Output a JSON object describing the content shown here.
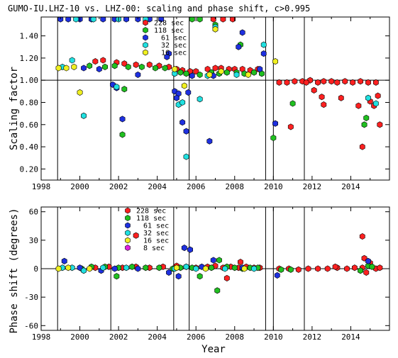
{
  "chart_data": [
    {
      "type": "scatter",
      "title": "GUMO-IU.LHZ-10 vs. LHZ-00: scaling and phase shift, c>0.995",
      "xlabel": "",
      "ylabel": "Scaling factor",
      "xlim": [
        1998,
        2016
      ],
      "ylim": [
        0.1,
        1.57
      ],
      "xticks": [
        1998,
        2000,
        2002,
        2004,
        2006,
        2008,
        2010,
        2012,
        2014
      ],
      "yticks": [
        0.2,
        0.4,
        0.6,
        0.8,
        1.0,
        1.2,
        1.4
      ],
      "ytick_labels": [
        "0.20",
        "0.40",
        "0.60",
        "0.80",
        "1.00",
        "1.20",
        "1.40"
      ],
      "hline": 1.0,
      "vlines": [
        1998.85,
        2001.6,
        2004.85,
        2005.65,
        2009.6,
        2010.0,
        2011.6
      ],
      "legend_position": "top-center",
      "series": [
        {
          "name": "228 sec",
          "color": "#ff2020",
          "points": [
            [
              2000.8,
              1.17
            ],
            [
              2001.2,
              1.18
            ],
            [
              2001.9,
              1.16
            ],
            [
              2002.3,
              1.15
            ],
            [
              2002.9,
              1.14
            ],
            [
              2003.6,
              1.14
            ],
            [
              2004.1,
              1.13
            ],
            [
              2004.6,
              1.12
            ],
            [
              2005.0,
              1.1
            ],
            [
              2005.3,
              1.09
            ],
            [
              2005.7,
              1.08
            ],
            [
              2006.0,
              1.08
            ],
            [
              2006.6,
              1.1
            ],
            [
              2007.0,
              1.11
            ],
            [
              2007.3,
              1.11
            ],
            [
              2007.7,
              1.1
            ],
            [
              2008.0,
              1.1
            ],
            [
              2008.4,
              1.1
            ],
            [
              2008.8,
              1.09
            ],
            [
              2009.2,
              1.1
            ],
            [
              2006.9,
              1.55
            ],
            [
              2007.4,
              1.55
            ],
            [
              2007.9,
              1.55
            ],
            [
              2010.3,
              0.98
            ],
            [
              2010.7,
              0.98
            ],
            [
              2011.1,
              0.99
            ],
            [
              2011.5,
              0.99
            ],
            [
              2011.9,
              1.0
            ],
            [
              2012.3,
              0.98
            ],
            [
              2012.6,
              0.99
            ],
            [
              2013.0,
              0.99
            ],
            [
              2013.3,
              0.98
            ],
            [
              2013.7,
              0.99
            ],
            [
              2014.1,
              0.98
            ],
            [
              2014.5,
              0.99
            ],
            [
              2014.9,
              0.98
            ],
            [
              2015.3,
              0.98
            ],
            [
              2012.1,
              0.91
            ],
            [
              2012.5,
              0.85
            ],
            [
              2012.6,
              0.78
            ],
            [
              2013.5,
              0.84
            ],
            [
              2014.4,
              0.77
            ],
            [
              2014.6,
              0.4
            ],
            [
              2015.0,
              0.81
            ],
            [
              2015.2,
              0.77
            ],
            [
              2015.4,
              0.86
            ],
            [
              2015.5,
              0.6
            ],
            [
              2010.9,
              0.58
            ],
            [
              2011.7,
              0.98
            ]
          ]
        },
        {
          "name": "118 sec",
          "color": "#20c020",
          "points": [
            [
              2000.5,
              1.13
            ],
            [
              2001.3,
              1.12
            ],
            [
              2001.8,
              1.13
            ],
            [
              2002.5,
              1.12
            ],
            [
              2003.2,
              1.12
            ],
            [
              2003.9,
              1.11
            ],
            [
              2004.4,
              1.11
            ],
            [
              2005.2,
              1.07
            ],
            [
              2005.5,
              1.06
            ],
            [
              2006.2,
              1.05
            ],
            [
              2006.8,
              1.07
            ],
            [
              2007.2,
              1.06
            ],
            [
              2007.6,
              1.07
            ],
            [
              2008.1,
              1.07
            ],
            [
              2008.5,
              1.06
            ],
            [
              2009.0,
              1.07
            ],
            [
              2009.4,
              1.06
            ],
            [
              2002.2,
              0.51
            ],
            [
              2002.3,
              0.92
            ],
            [
              2008.3,
              1.32
            ],
            [
              2007.0,
              1.5
            ],
            [
              2010.0,
              0.48
            ],
            [
              2011.0,
              0.79
            ],
            [
              2014.7,
              0.6
            ],
            [
              2014.8,
              0.66
            ],
            [
              2005.8,
              1.55
            ],
            [
              2006.2,
              1.55
            ]
          ]
        },
        {
          "name": "61 sec",
          "color": "#1e30e0",
          "points": [
            [
              1999.0,
              1.55
            ],
            [
              1999.4,
              1.55
            ],
            [
              2000.0,
              1.55
            ],
            [
              2000.6,
              1.55
            ],
            [
              2001.2,
              1.55
            ],
            [
              2001.8,
              1.55
            ],
            [
              2002.4,
              1.55
            ],
            [
              2003.0,
              1.55
            ],
            [
              2003.6,
              1.55
            ],
            [
              2004.2,
              1.55
            ],
            [
              2000.2,
              1.11
            ],
            [
              2001.0,
              1.1
            ],
            [
              2001.7,
              0.96
            ],
            [
              2001.9,
              0.93
            ],
            [
              2002.2,
              0.65
            ],
            [
              2003.0,
              1.05
            ],
            [
              2004.6,
              1.24
            ],
            [
              2004.5,
              1.21
            ],
            [
              2004.9,
              0.9
            ],
            [
              2005.1,
              0.88
            ],
            [
              2005.3,
              0.62
            ],
            [
              2005.5,
              0.54
            ],
            [
              2005.6,
              0.89
            ],
            [
              2005.8,
              1.04
            ],
            [
              2006.7,
              0.45
            ],
            [
              2008.4,
              1.43
            ],
            [
              2008.2,
              1.3
            ],
            [
              2009.5,
              1.24
            ],
            [
              2009.3,
              1.1
            ],
            [
              2010.1,
              0.61
            ],
            [
              2005.0,
              0.84
            ],
            [
              2006.9,
              1.04
            ]
          ]
        },
        {
          "name": "32 sec",
          "color": "#20e0e0",
          "points": [
            [
              1999.1,
              1.12
            ],
            [
              1999.6,
              1.18
            ],
            [
              2000.2,
              0.68
            ],
            [
              2001.9,
              0.94
            ],
            [
              2004.9,
              1.06
            ],
            [
              2005.1,
              0.78
            ],
            [
              2005.3,
              0.8
            ],
            [
              2005.5,
              0.31
            ],
            [
              2006.2,
              0.83
            ],
            [
              2006.6,
              1.04
            ],
            [
              2007.0,
              1.48
            ],
            [
              2008.1,
              1.05
            ],
            [
              2009.5,
              1.32
            ],
            [
              2014.9,
              0.84
            ],
            [
              2015.3,
              0.79
            ],
            [
              1999.8,
              1.55
            ],
            [
              2000.7,
              1.55
            ],
            [
              2002.0,
              1.55
            ],
            [
              2003.4,
              1.55
            ]
          ]
        },
        {
          "name": "16 sec",
          "color": "#f0f020",
          "points": [
            [
              1998.9,
              1.11
            ],
            [
              1999.3,
              1.11
            ],
            [
              1999.7,
              1.12
            ],
            [
              2000.0,
              0.89
            ],
            [
              2005.4,
              0.95
            ],
            [
              2006.7,
              1.05
            ],
            [
              2007.0,
              1.46
            ],
            [
              2007.3,
              1.08
            ],
            [
              2008.7,
              1.05
            ],
            [
              2010.1,
              1.17
            ],
            [
              2004.9,
              1.1
            ]
          ]
        }
      ]
    },
    {
      "type": "scatter",
      "title": "",
      "xlabel": "Year",
      "ylabel": "Phase shift (degrees)",
      "xlim": [
        1998,
        2016
      ],
      "ylim": [
        -65,
        65
      ],
      "xticks": [
        1998,
        2000,
        2002,
        2004,
        2006,
        2008,
        2010,
        2012,
        2014
      ],
      "yticks": [
        -60,
        -30,
        0,
        30,
        60
      ],
      "ytick_labels": [
        "-60",
        "-30",
        "0",
        "30",
        "60"
      ],
      "hline": 0,
      "vlines": [
        1998.85,
        2001.6,
        2004.85,
        2005.65,
        2009.6,
        2010.0,
        2011.6
      ],
      "legend_position": "top-center",
      "series": [
        {
          "name": "228 sec",
          "color": "#ff2020",
          "points": [
            [
              2000.8,
              1
            ],
            [
              2001.5,
              2
            ],
            [
              2002.2,
              1
            ],
            [
              2002.9,
              2
            ],
            [
              2003.6,
              1
            ],
            [
              2004.3,
              2
            ],
            [
              2005.0,
              3
            ],
            [
              2005.5,
              2
            ],
            [
              2006.0,
              1
            ],
            [
              2006.6,
              2
            ],
            [
              2007.0,
              3
            ],
            [
              2007.4,
              1
            ],
            [
              2007.8,
              2
            ],
            [
              2008.2,
              1
            ],
            [
              2008.6,
              2
            ],
            [
              2009.0,
              1
            ],
            [
              2009.3,
              1
            ],
            [
              2010.3,
              0
            ],
            [
              2010.8,
              0
            ],
            [
              2011.3,
              -1
            ],
            [
              2011.8,
              0
            ],
            [
              2012.3,
              0
            ],
            [
              2012.8,
              0
            ],
            [
              2013.3,
              1
            ],
            [
              2013.8,
              0
            ],
            [
              2014.2,
              1
            ],
            [
              2014.6,
              1
            ],
            [
              2014.6,
              34
            ],
            [
              2014.7,
              11
            ],
            [
              2014.8,
              -4
            ],
            [
              2015.0,
              6
            ],
            [
              2015.3,
              0
            ],
            [
              2015.5,
              1
            ],
            [
              2007.6,
              -10
            ],
            [
              2002.9,
              35
            ],
            [
              2008.3,
              7
            ],
            [
              2013.2,
              2
            ]
          ]
        },
        {
          "name": "118 sec",
          "color": "#20c020",
          "points": [
            [
              2000.1,
              0
            ],
            [
              2000.6,
              2
            ],
            [
              2001.3,
              2
            ],
            [
              2002.0,
              1
            ],
            [
              2002.7,
              2
            ],
            [
              2003.4,
              1
            ],
            [
              2004.1,
              1
            ],
            [
              2004.8,
              0
            ],
            [
              2005.2,
              1
            ],
            [
              2005.8,
              1
            ],
            [
              2006.2,
              -8
            ],
            [
              2006.8,
              1
            ],
            [
              2007.2,
              9
            ],
            [
              2007.1,
              -23
            ],
            [
              2007.6,
              2
            ],
            [
              2008.0,
              1
            ],
            [
              2008.4,
              0
            ],
            [
              2008.8,
              1
            ],
            [
              2009.2,
              1
            ],
            [
              2001.9,
              -8
            ],
            [
              2010.4,
              -1
            ],
            [
              2010.9,
              -1
            ],
            [
              2014.5,
              -2
            ],
            [
              2014.9,
              3
            ],
            [
              2015.1,
              2
            ]
          ]
        },
        {
          "name": "61 sec",
          "color": "#1e30e0",
          "points": [
            [
              1999.2,
              8
            ],
            [
              2000.0,
              1
            ],
            [
              2001.1,
              -2
            ],
            [
              2001.8,
              0
            ],
            [
              2003.0,
              0
            ],
            [
              2004.6,
              -4
            ],
            [
              2005.1,
              -8
            ],
            [
              2005.4,
              22
            ],
            [
              2005.7,
              20
            ],
            [
              2006.3,
              2
            ],
            [
              2006.9,
              9
            ],
            [
              2008.4,
              1
            ],
            [
              2010.2,
              -7
            ],
            [
              2014.9,
              8
            ]
          ]
        },
        {
          "name": "32 sec",
          "color": "#20e0e0",
          "points": [
            [
              1999.1,
              1
            ],
            [
              1999.6,
              1
            ],
            [
              2000.2,
              -2
            ],
            [
              2001.2,
              1
            ],
            [
              2002.4,
              1
            ],
            [
              2004.9,
              0
            ],
            [
              2005.5,
              2
            ],
            [
              2006.0,
              0
            ],
            [
              2007.5,
              0
            ],
            [
              2009.0,
              0
            ]
          ]
        },
        {
          "name": "16 sec",
          "color": "#f0f020",
          "points": [
            [
              1998.9,
              0
            ],
            [
              1999.4,
              1
            ],
            [
              2000.5,
              0
            ],
            [
              2005.0,
              1
            ],
            [
              2006.5,
              0
            ],
            [
              2008.5,
              0
            ]
          ]
        },
        {
          "name": "8 sec",
          "color": "#e020e0",
          "points": []
        }
      ]
    }
  ]
}
